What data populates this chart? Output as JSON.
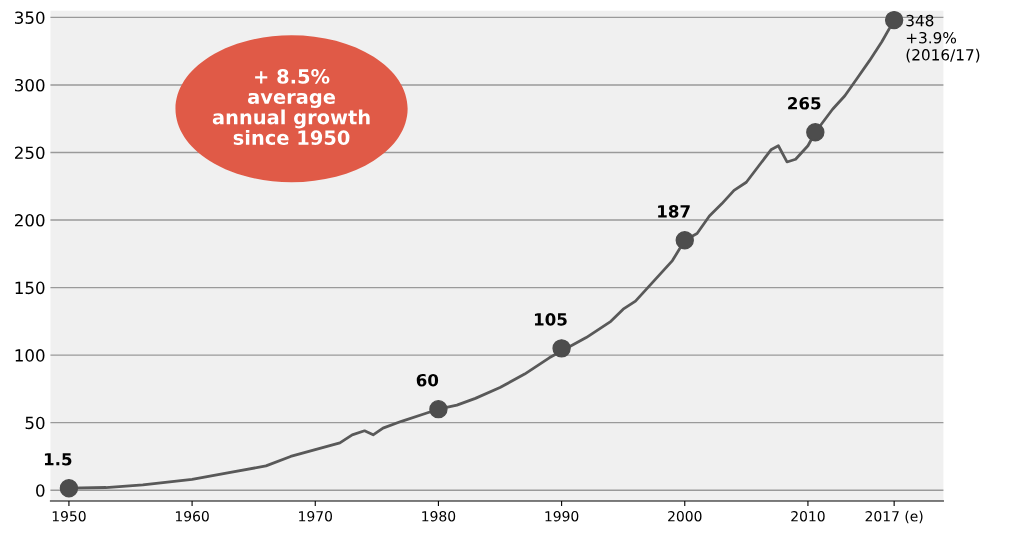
{
  "chart_data": {
    "type": "line",
    "x": [
      1950,
      1953,
      1956,
      1960,
      1963,
      1966,
      1968,
      1970,
      1972,
      1973,
      1974,
      1974.7,
      1975.5,
      1977,
      1979,
      1980,
      1981.5,
      1983,
      1985,
      1987,
      1989,
      1990,
      1992,
      1994,
      1995,
      1996,
      1997,
      1998,
      1999,
      2000,
      2001,
      2002,
      2003,
      2004,
      2005,
      2006,
      2007,
      2007.6,
      2008.3,
      2009,
      2010,
      2010.6,
      2012,
      2013,
      2014,
      2015,
      2016,
      2017
    ],
    "series": [
      {
        "color": "#595959",
        "values": [
          1.5,
          2,
          4,
          8,
          13,
          18,
          25,
          30,
          35,
          41,
          44,
          41,
          46,
          51,
          57,
          60,
          63,
          68,
          76,
          86,
          98,
          103,
          113,
          125,
          134,
          140,
          150,
          160,
          170,
          185,
          190,
          203,
          212,
          222,
          228,
          240,
          252,
          255,
          243,
          245,
          255,
          265,
          282,
          292,
          305,
          318,
          332,
          348
        ]
      },
      {
        "type": "scatter",
        "marker": "circle",
        "color": "#4d4d4d",
        "x": [
          1950,
          1980,
          1990,
          2000,
          2010.6,
          2017
        ],
        "values": [
          1.5,
          60,
          105,
          185,
          265,
          348
        ]
      }
    ],
    "xlim": [
      1948.5,
      2021
    ],
    "ylim": [
      -8,
      355
    ],
    "xticks": [
      1950,
      1960,
      1970,
      1980,
      1990,
      2000,
      2010,
      {
        "value": 2017,
        "label": "2017 (e)"
      }
    ],
    "yticks": [
      0,
      50,
      100,
      150,
      200,
      250,
      300,
      350
    ],
    "grid": "y",
    "line_style": "solid",
    "annotations": [
      "+ 8.5%\naverage\nannual growth\nsince 1950",
      {
        "text": "1.5",
        "x": 1950,
        "y": 1.5
      },
      {
        "text": "60",
        "x": 1980,
        "y": 60
      },
      {
        "text": "105",
        "x": 1990,
        "y": 105
      },
      {
        "text": "187",
        "x": 2000,
        "y": 185
      },
      {
        "text": "265",
        "x": 2010.6,
        "y": 265
      },
      {
        "text": "348\n+3.9%\n(2016/17)",
        "x": 2017,
        "y": 348
      }
    ]
  }
}
